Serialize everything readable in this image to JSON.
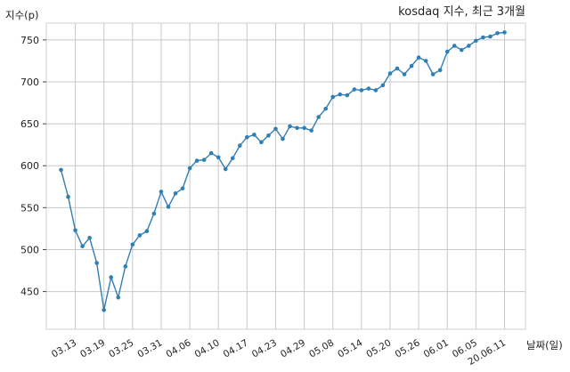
{
  "chart_data": {
    "type": "line",
    "title": "kosdaq 지수, 최근 3개월",
    "ylabel": "지수(p)",
    "xlabel": "날짜(일)",
    "ylim": [
      405,
      770
    ],
    "yticks": [
      450,
      500,
      550,
      600,
      650,
      700,
      750
    ],
    "grid": true,
    "line_color": "#2f7fb5",
    "x_tick_labels": [
      "03.13",
      "03.19",
      "03.25",
      "03.31",
      "04.06",
      "04.10",
      "04.17",
      "04.23",
      "04.29",
      "05.08",
      "05.14",
      "05.20",
      "05.26",
      "06.01",
      "06.05",
      "20.06.11"
    ],
    "x_tick_index": [
      2,
      6,
      10,
      14,
      18,
      22,
      26,
      30,
      34,
      38,
      42,
      46,
      50,
      54,
      58,
      62
    ],
    "series": [
      {
        "values": [
          595,
          563,
          523,
          504,
          514,
          484,
          428,
          467,
          443,
          480,
          506,
          517,
          522,
          543,
          569,
          551,
          567,
          573,
          597,
          606,
          607,
          615,
          610,
          596,
          609,
          624,
          634,
          637,
          628,
          636,
          644,
          632,
          647,
          645,
          645,
          642,
          658,
          668,
          682,
          685,
          684,
          691,
          690,
          692,
          690,
          696,
          710,
          716,
          709,
          719,
          729,
          725,
          709,
          714,
          736,
          743,
          738,
          743,
          749,
          753,
          754,
          758,
          759
        ]
      }
    ]
  }
}
